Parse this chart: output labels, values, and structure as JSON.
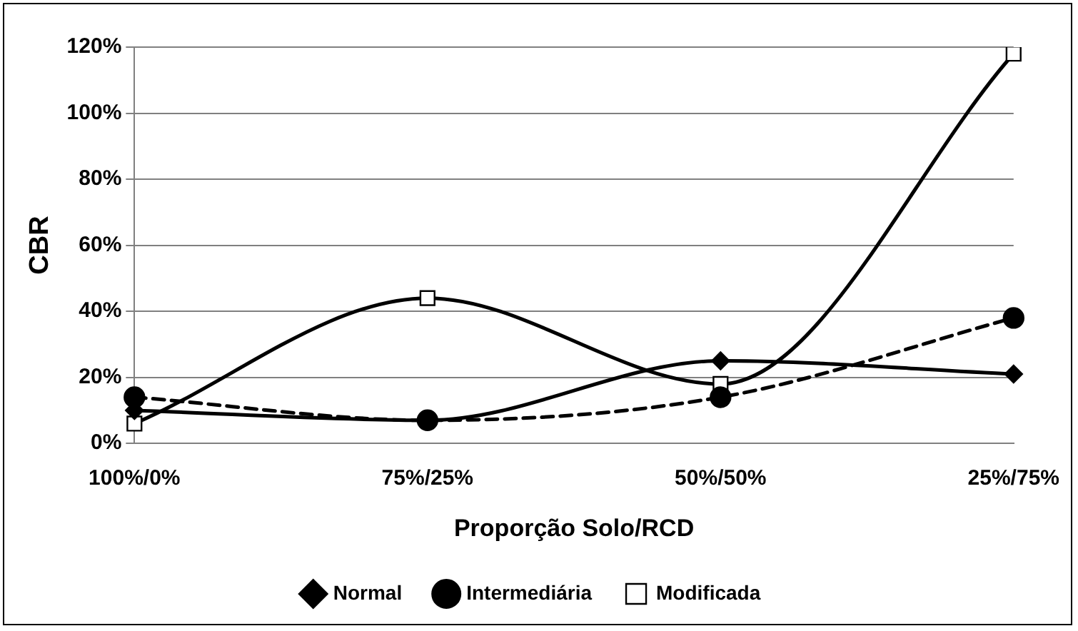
{
  "chart_data": {
    "type": "line",
    "xlabel": "Proporção Solo/RCD",
    "ylabel": "CBR",
    "categories": [
      "100%/0%",
      "75%/25%",
      "50%/50%",
      "25%/75%"
    ],
    "series": [
      {
        "name": "Normal",
        "color": "#000000",
        "values": [
          10,
          7,
          25,
          21
        ],
        "marker": "diamond",
        "line_style": "solid"
      },
      {
        "name": "Intermediária",
        "color": "#000000",
        "values": [
          14,
          7,
          14,
          38
        ],
        "marker": "circle",
        "line_style": "dashed"
      },
      {
        "name": "Modificada",
        "color": "#000000",
        "values": [
          6,
          44,
          18,
          118
        ],
        "marker": "square",
        "line_style": "solid"
      }
    ],
    "ylim": [
      0,
      120
    ],
    "yticks": [
      {
        "value": 0,
        "label": "0%"
      },
      {
        "value": 20,
        "label": "20%"
      },
      {
        "value": 40,
        "label": "40%"
      },
      {
        "value": 60,
        "label": "60%"
      },
      {
        "value": 80,
        "label": "80%"
      },
      {
        "value": 100,
        "label": "100%"
      },
      {
        "value": 120,
        "label": "120%"
      }
    ],
    "grid": "y",
    "legend": "bottom"
  }
}
